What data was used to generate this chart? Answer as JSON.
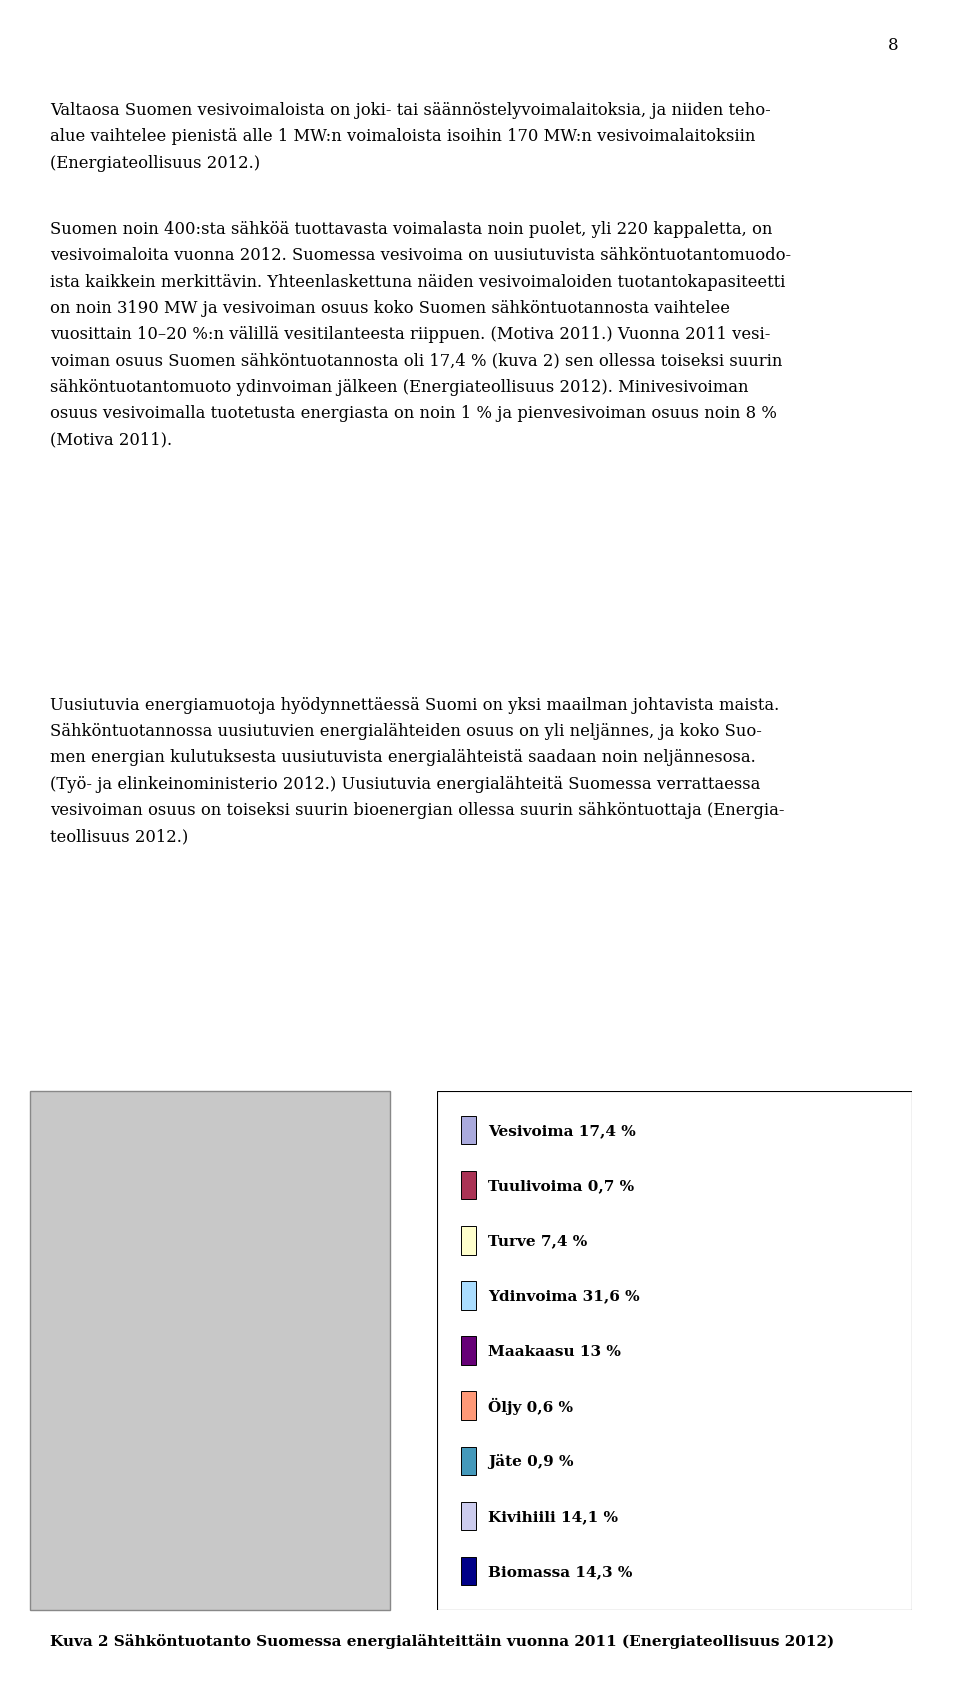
{
  "page_number": "8",
  "pie_data": {
    "labels": [
      "Vesivoima 17,4 %",
      "Tuulivoima 0,7 %",
      "Turve 7,4 %",
      "Ydinvoima 31,6 %",
      "Maakaasu 13 %",
      "Öljy 0,6 %",
      "Jäte 0,9 %",
      "Kivihiili 14,1 %",
      "Biomassa 14,3 %"
    ],
    "values": [
      17.4,
      0.7,
      7.4,
      31.6,
      13.0,
      0.6,
      0.9,
      14.1,
      14.3
    ],
    "colors": [
      "#AAAADD",
      "#AA3355",
      "#FFFFCC",
      "#AADDFF",
      "#660077",
      "#FF9977",
      "#4499BB",
      "#CCCCEE",
      "#000088"
    ],
    "legend_colors": [
      "#AAAADD",
      "#AA3355",
      "#FFFFCC",
      "#AADDFF",
      "#660077",
      "#FF9977",
      "#4499BB",
      "#CCCCEE",
      "#000088"
    ]
  },
  "caption": "Kuva 2 Sähköntuotanto Suomessa energialähteittäin vuonna 2011 (Energiateollisuus 2012)",
  "bg_color": "#C8C8C8",
  "p1_lines": [
    "Valtaosa Suomen vesivoimaloista on joki- tai säännöstelyvoimalaitoksia, ja niiden teho-",
    "alue vaihtelee pienistä alle 1 MW:n voimaloista isoihin 170 MW:n vesivoimalaitoksiin",
    "(Energiateollisuus 2012.)"
  ],
  "p2_lines": [
    "Suomen noin 400:sta sähköä tuottavasta voimalasta noin puolet, yli 220 kappaletta, on",
    "vesivoimaloita vuonna 2012. Suomessa vesivoima on uusiutuvista sähköntuotantomuodo-",
    "ista kaikkein merkittävin. Yhteenlaskettuna näiden vesivoimaloiden tuotantokapasiteetti",
    "on noin 3190 MW ja vesivoiman osuus koko Suomen sähköntuotannosta vaihtelee",
    "vuosittain 10–20 %:n välillä vesitilanteesta riippuen. (Motiva 2011.) Vuonna 2011 vesi-",
    "voiman osuus Suomen sähköntuotannosta oli 17,4 % (kuva 2) sen ollessa toiseksi suurin",
    "sähköntuotantomuoto ydinvoiman jälkeen (Energiateollisuus 2012). Minivesivoiman",
    "osuus vesivoimalla tuotetusta energiasta on noin 1 % ja pienvesivoiman osuus noin 8 %",
    "(Motiva 2011)."
  ],
  "p3_lines": [
    "Uusiutuvia energiamuotoja hyödynnettäessä Suomi on yksi maailman johtavista maista.",
    "Sähköntuotannossa uusiutuvien energialähteiden osuus on yli neljännes, ja koko Suo-",
    "men energian kulutuksesta uusiutuvista energialähteistä saadaan noin neljännesosa.",
    "(Työ- ja elinkeinoministerio 2012.) Uusiutuvia energialähteitä Suomessa verrattaessa",
    "vesivoiman osuus on toiseksi suurin bioenergian ollessa suurin sähköntuottaja (Energia-",
    "teollisuus 2012.)"
  ]
}
